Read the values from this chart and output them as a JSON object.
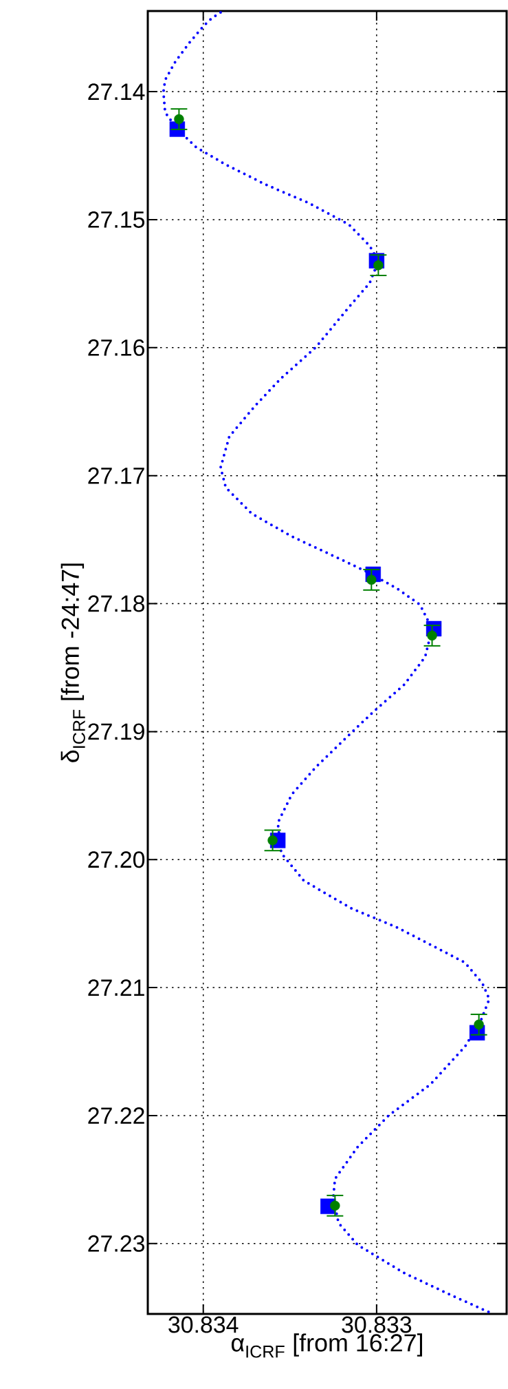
{
  "chart_data": {
    "type": "scatter",
    "xlabel": "α$_{ICRF}$  [from 16:27]",
    "ylabel": "δ$_{ICRF}$  [from -24:47]",
    "xlim": [
      30.83432,
      30.83225
    ],
    "ylim": [
      27.2355,
      27.1337
    ],
    "xticks": [
      30.834,
      30.833
    ],
    "yticks": [
      27.14,
      27.15,
      27.16,
      27.17,
      27.18,
      27.19,
      {
        "value": 27.2,
        "label": "27.20"
      },
      27.21,
      27.22,
      27.23
    ],
    "grid": true,
    "series": [
      {
        "type": "line",
        "color": "#0000ff",
        "line_style": "dotted",
        "marker": "none",
        "x": [
          30.8339,
          30.83395,
          30.834,
          30.83408,
          30.83416,
          30.83422,
          30.83423,
          30.83422,
          30.83415,
          30.83404,
          30.83387,
          30.83364,
          30.83339,
          30.83316,
          30.83304,
          30.83299,
          30.83304,
          30.83316,
          30.83335,
          30.83355,
          30.8337,
          30.83385,
          30.8339,
          30.83387,
          30.83372,
          30.83349,
          30.83326,
          30.83305,
          30.83288,
          30.83275,
          30.83268,
          30.83272,
          30.83284,
          30.83302,
          30.83317,
          30.83335,
          30.83349,
          30.83357,
          30.83355,
          30.83342,
          30.83314,
          30.83289,
          30.83275,
          30.83249,
          30.83239,
          30.83235,
          30.8324,
          30.83249,
          30.83269,
          30.83293,
          30.83311,
          30.83324,
          30.83325,
          30.83322,
          30.83311,
          30.83284,
          30.83257,
          30.83235
        ],
        "values": [
          27.13381,
          27.13425,
          27.13489,
          27.13618,
          27.13763,
          27.13909,
          27.14005,
          27.14161,
          27.14293,
          27.14436,
          27.1457,
          27.14726,
          27.14871,
          27.15038,
          27.15205,
          27.15323,
          27.15495,
          27.15684,
          27.15996,
          27.16238,
          27.16453,
          27.16695,
          27.16937,
          27.17093,
          27.17297,
          27.17475,
          27.1762,
          27.17755,
          27.17884,
          27.18008,
          27.18196,
          27.18416,
          27.18632,
          27.18847,
          27.1904,
          27.19277,
          27.19492,
          27.19713,
          27.19949,
          27.20165,
          27.20385,
          27.20525,
          27.20622,
          27.20805,
          27.20966,
          27.2109,
          27.21262,
          27.21461,
          27.21757,
          27.21999,
          27.22246,
          27.22494,
          27.22639,
          27.22838,
          27.2301,
          27.23231,
          27.23403,
          27.23537
        ]
      },
      {
        "color": "#0000ff",
        "marker": "square",
        "x": [
          30.83415,
          30.833,
          30.83302,
          30.83267,
          30.83357,
          30.83242,
          30.83328
        ],
        "values": [
          27.14293,
          27.15321,
          27.17771,
          27.18196,
          27.1985,
          27.21353,
          27.22709
        ]
      },
      {
        "color": "#008000",
        "marker": "circle",
        "x": [
          30.83414,
          30.83299,
          30.83303,
          30.83268,
          30.8336,
          30.83241,
          30.83324
        ],
        "values": [
          27.14215,
          27.15356,
          27.17814,
          27.1825,
          27.1985,
          27.21289,
          27.22704
        ],
        "errors": [
          0.0008,
          0.0008,
          0.0008,
          0.0008,
          0.0008,
          0.0008,
          0.0008
        ]
      }
    ]
  }
}
